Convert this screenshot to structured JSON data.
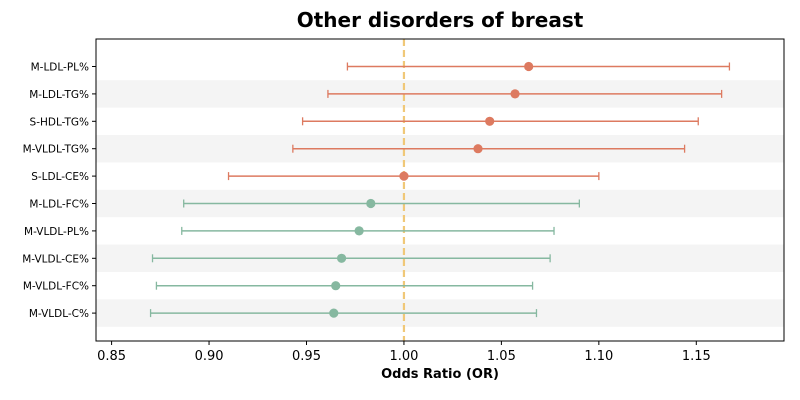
{
  "chart_data": {
    "type": "forest",
    "title": "Other disorders of breast",
    "xlabel": "Odds Ratio (OR)",
    "xlim": [
      0.842,
      1.195
    ],
    "xticks": [
      "0.85",
      "0.90",
      "0.95",
      "1.00",
      "1.05",
      "1.10",
      "1.15"
    ],
    "reference_line": 1.0,
    "grid": false,
    "colors": {
      "positive": "#dd7a60",
      "negative": "#86b8a0",
      "reference": "#f0c878",
      "band": "#f4f4f4"
    },
    "rows": [
      {
        "label": "M-LDL-PL%",
        "or": 1.064,
        "lo": 0.971,
        "hi": 1.167
      },
      {
        "label": "M-LDL-TG%",
        "or": 1.057,
        "lo": 0.961,
        "hi": 1.163
      },
      {
        "label": "S-HDL-TG%",
        "or": 1.044,
        "lo": 0.948,
        "hi": 1.151
      },
      {
        "label": "M-VLDL-TG%",
        "or": 1.038,
        "lo": 0.943,
        "hi": 1.144
      },
      {
        "label": "S-LDL-CE%",
        "or": 1.0,
        "lo": 0.91,
        "hi": 1.1
      },
      {
        "label": "M-LDL-FC%",
        "or": 0.983,
        "lo": 0.887,
        "hi": 1.09
      },
      {
        "label": "M-VLDL-PL%",
        "or": 0.977,
        "lo": 0.886,
        "hi": 1.077
      },
      {
        "label": "M-VLDL-CE%",
        "or": 0.968,
        "lo": 0.871,
        "hi": 1.075
      },
      {
        "label": "M-VLDL-FC%",
        "or": 0.965,
        "lo": 0.873,
        "hi": 1.066
      },
      {
        "label": "M-VLDL-C%",
        "or": 0.964,
        "lo": 0.87,
        "hi": 1.068
      }
    ]
  }
}
